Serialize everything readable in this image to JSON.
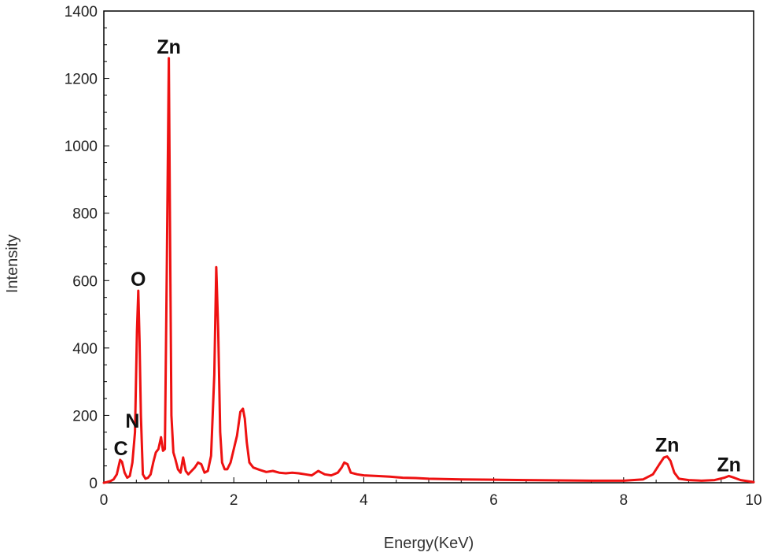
{
  "chart_data": {
    "type": "line",
    "xlabel": "Energy(KeV)",
    "ylabel": "Intensity",
    "xlim": [
      0,
      10
    ],
    "ylim": [
      0,
      1400
    ],
    "xticks": [
      0,
      2,
      4,
      6,
      8,
      10
    ],
    "yticks": [
      0,
      200,
      400,
      600,
      800,
      1000,
      1200,
      1400
    ],
    "grid": false,
    "legend": "none",
    "series": [
      {
        "color": "#ee1111",
        "x": [
          0.0,
          0.05,
          0.1,
          0.15,
          0.2,
          0.25,
          0.28,
          0.32,
          0.36,
          0.4,
          0.44,
          0.48,
          0.51,
          0.53,
          0.55,
          0.57,
          0.6,
          0.64,
          0.68,
          0.72,
          0.76,
          0.8,
          0.84,
          0.88,
          0.91,
          0.94,
          0.97,
          1.0,
          1.02,
          1.04,
          1.07,
          1.1,
          1.14,
          1.18,
          1.22,
          1.26,
          1.3,
          1.35,
          1.4,
          1.45,
          1.5,
          1.55,
          1.6,
          1.65,
          1.7,
          1.73,
          1.76,
          1.79,
          1.82,
          1.86,
          1.9,
          1.95,
          2.0,
          2.05,
          2.1,
          2.14,
          2.17,
          2.2,
          2.24,
          2.3,
          2.4,
          2.5,
          2.6,
          2.7,
          2.8,
          2.9,
          3.0,
          3.1,
          3.2,
          3.3,
          3.35,
          3.4,
          3.5,
          3.6,
          3.66,
          3.7,
          3.75,
          3.8,
          3.9,
          4.0,
          4.2,
          4.4,
          4.6,
          4.8,
          5.0,
          5.5,
          6.0,
          6.5,
          7.0,
          7.5,
          8.0,
          8.3,
          8.45,
          8.55,
          8.62,
          8.67,
          8.72,
          8.78,
          8.85,
          9.0,
          9.2,
          9.4,
          9.55,
          9.62,
          9.7,
          9.8,
          9.9,
          10.0
        ],
        "y": [
          0,
          2,
          5,
          10,
          25,
          68,
          62,
          30,
          15,
          20,
          60,
          150,
          450,
          570,
          420,
          200,
          25,
          12,
          15,
          25,
          60,
          90,
          100,
          135,
          95,
          100,
          650,
          1260,
          700,
          200,
          90,
          70,
          40,
          30,
          75,
          35,
          25,
          35,
          45,
          60,
          55,
          30,
          35,
          80,
          320,
          640,
          450,
          150,
          60,
          40,
          40,
          60,
          100,
          140,
          210,
          220,
          190,
          120,
          60,
          45,
          38,
          32,
          35,
          30,
          28,
          30,
          28,
          25,
          22,
          35,
          30,
          25,
          22,
          30,
          45,
          60,
          55,
          30,
          25,
          22,
          20,
          18,
          15,
          14,
          12,
          10,
          9,
          8,
          7,
          6,
          6,
          10,
          25,
          55,
          75,
          78,
          65,
          30,
          12,
          8,
          6,
          8,
          15,
          20,
          15,
          8,
          5,
          2
        ]
      }
    ],
    "annotations": [
      {
        "text": "C",
        "x": 0.26,
        "y": 68
      },
      {
        "text": "N",
        "x": 0.44,
        "y": 150
      },
      {
        "text": "O",
        "x": 0.53,
        "y": 570
      },
      {
        "text": "Zn",
        "x": 1.0,
        "y": 1260
      },
      {
        "text": "Zn",
        "x": 8.67,
        "y": 78
      },
      {
        "text": "Zn",
        "x": 9.62,
        "y": 20
      }
    ]
  }
}
